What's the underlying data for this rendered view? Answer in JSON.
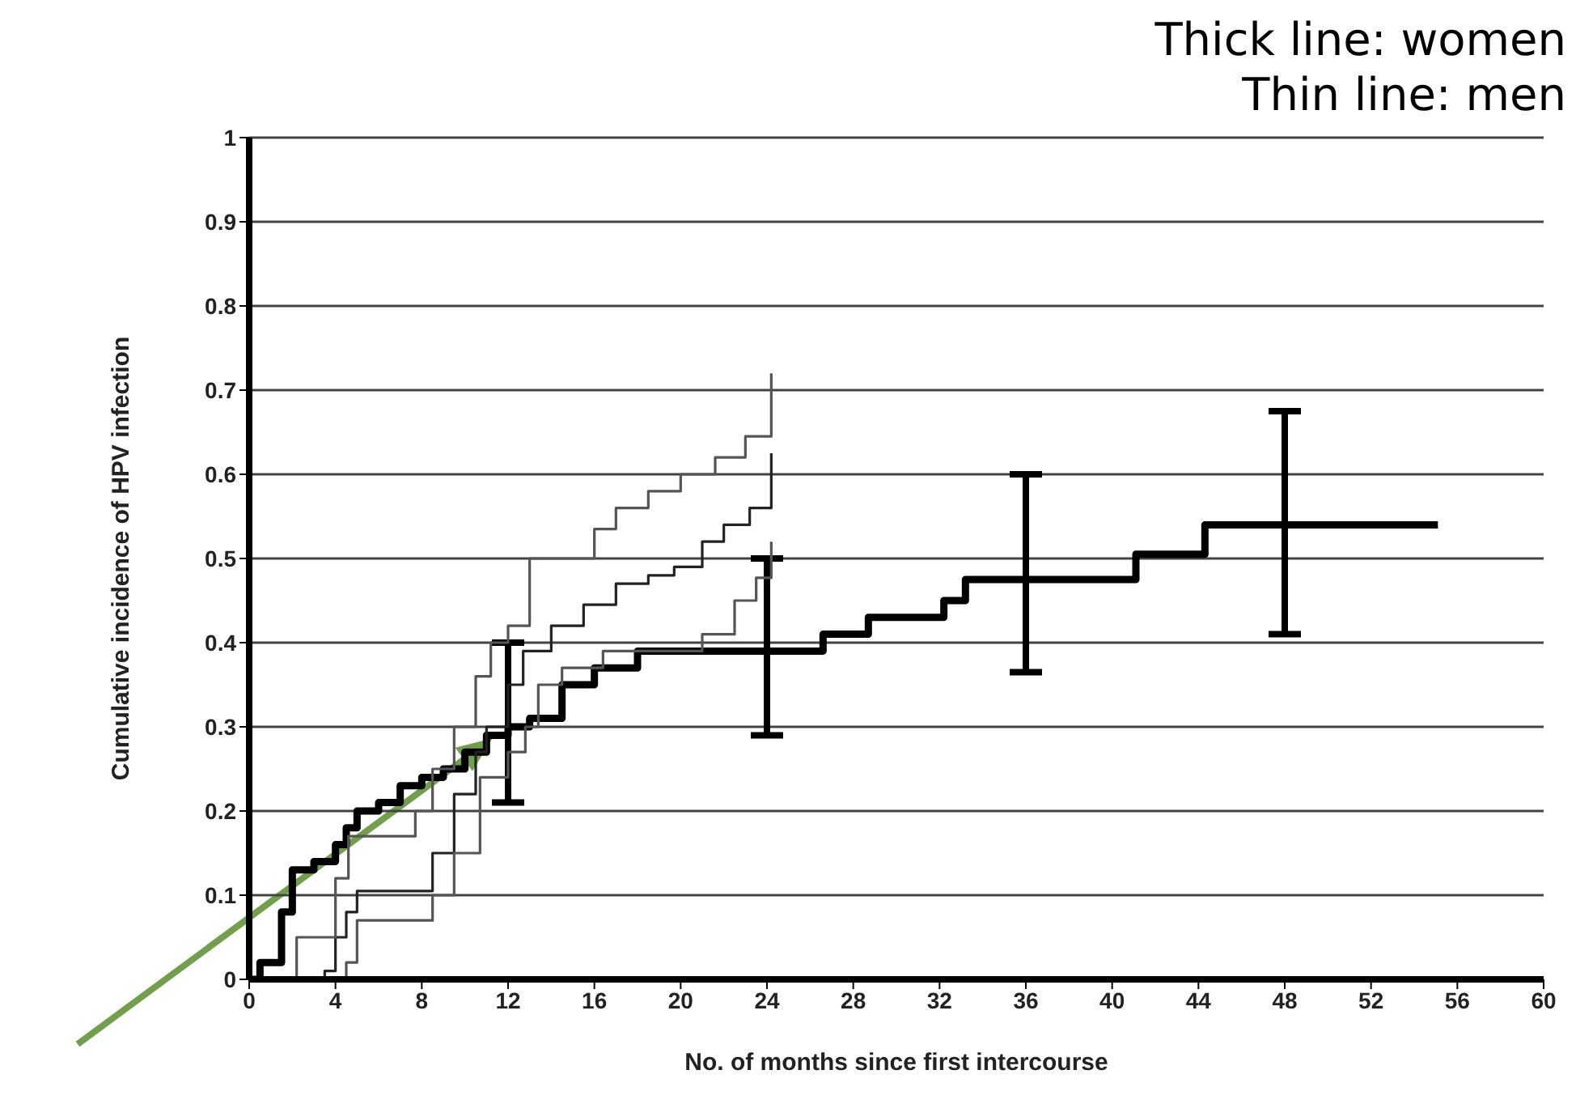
{
  "chart_data": {
    "type": "step",
    "xlabel": "No. of months since first intercourse",
    "ylabel": "Cumulative incidence of HPV infection",
    "annotations": [
      "Thick line: women",
      "Thin line: men"
    ],
    "xlim": [
      0,
      60
    ],
    "xticks": [
      0,
      4,
      8,
      12,
      16,
      20,
      24,
      28,
      32,
      36,
      40,
      44,
      48,
      52,
      56,
      60
    ],
    "ylim": [
      0,
      1
    ],
    "yticks": [
      0,
      0.1,
      0.2,
      0.3,
      0.4,
      0.5,
      0.6,
      0.7,
      0.8,
      0.9,
      1
    ],
    "grid": "y",
    "legend": false,
    "marker": "none",
    "line_style": "solid",
    "series": [
      {
        "color": "#000000",
        "x": [
          0,
          0.5,
          1.5,
          2,
          3,
          4,
          4.5,
          5,
          6,
          7,
          8,
          9,
          10,
          11,
          12,
          13,
          14.5,
          16,
          18,
          24,
          26.6,
          28.7,
          32.2,
          33.2,
          36,
          41.1,
          44.3,
          48,
          55.1
        ],
        "values": [
          0,
          0.02,
          0.08,
          0.13,
          0.14,
          0.16,
          0.18,
          0.2,
          0.21,
          0.23,
          0.24,
          0.25,
          0.27,
          0.29,
          0.3,
          0.31,
          0.35,
          0.37,
          0.39,
          0.39,
          0.41,
          0.43,
          0.45,
          0.475,
          0.475,
          0.505,
          0.54,
          0.54,
          0.54
        ],
        "errors": [
          null,
          null,
          null,
          null,
          null,
          null,
          null,
          null,
          null,
          null,
          null,
          null,
          null,
          null,
          [
            0.21,
            0.4
          ],
          null,
          null,
          null,
          null,
          [
            0.29,
            0.5
          ],
          null,
          null,
          null,
          null,
          [
            0.365,
            0.6
          ],
          null,
          null,
          [
            0.41,
            0.675
          ],
          null
        ]
      },
      {
        "color": "#222222",
        "x": [
          0,
          3.5,
          4,
          4.5,
          5,
          7.7,
          8.5,
          9.5,
          10.5,
          11,
          12,
          12.7,
          14,
          15.5,
          17,
          18.5,
          19.7,
          21,
          22,
          23.2,
          24.2
        ],
        "values": [
          0,
          0.01,
          0.05,
          0.08,
          0.105,
          0.105,
          0.15,
          0.22,
          0.27,
          0.3,
          0.35,
          0.39,
          0.42,
          0.445,
          0.47,
          0.48,
          0.49,
          0.52,
          0.54,
          0.56,
          0.625
        ]
      },
      {
        "color": "#555555",
        "x": [
          0,
          2.2,
          4,
          4.6,
          7.7,
          8.5,
          9.5,
          10.5,
          11.2,
          12,
          13,
          14.3,
          16,
          17,
          18.5,
          20,
          21.6,
          23,
          24.2
        ],
        "values": [
          0,
          0.05,
          0.12,
          0.17,
          0.2,
          0.25,
          0.3,
          0.36,
          0.4,
          0.42,
          0.5,
          0.5,
          0.535,
          0.56,
          0.58,
          0.6,
          0.62,
          0.645,
          0.72
        ]
      },
      {
        "color": "#555555",
        "x": [
          0,
          4.5,
          5,
          7.7,
          8.5,
          9.5,
          10.7,
          12,
          12.8,
          13.4,
          14.5,
          16.4,
          18,
          21,
          22.5,
          23.5,
          24.2
        ],
        "values": [
          0,
          0.02,
          0.07,
          0.07,
          0.1,
          0.15,
          0.24,
          0.27,
          0.3,
          0.35,
          0.37,
          0.39,
          0.39,
          0.41,
          0.45,
          0.477,
          0.52
        ]
      }
    ]
  }
}
